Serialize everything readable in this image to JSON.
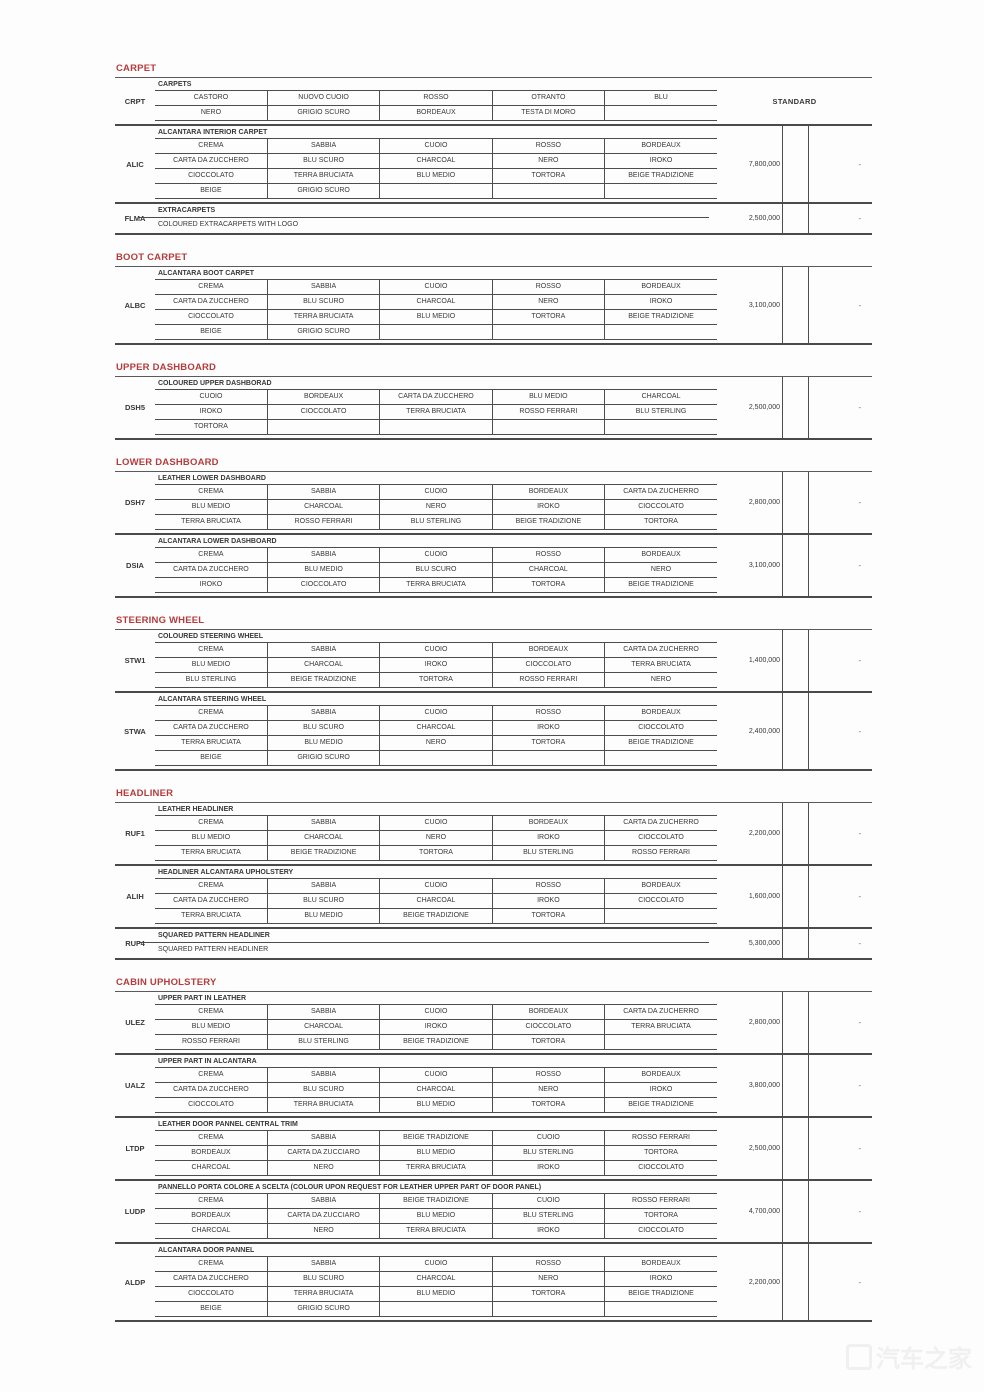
{
  "watermark": {
    "text": "汽车之家"
  },
  "sections": [
    {
      "title": "CARPET",
      "blocks": [
        {
          "code": "CRPT",
          "header": "CARPETS",
          "rows": [
            [
              "CASTORO",
              "NUOVO CUOIO",
              "ROSSO",
              "OTRANTO",
              "BLU"
            ],
            [
              "NERO",
              "GRIGIO SCURO",
              "BORDEAUX",
              "TESTA DI MORO",
              ""
            ]
          ],
          "standard": "STANDARD"
        },
        {
          "code": "ALIC",
          "header": "ALCANTARA INTERIOR CARPET",
          "rows": [
            [
              "CREMA",
              "SABBIA",
              "CUOIO",
              "ROSSO",
              "BORDEAUX"
            ],
            [
              "CARTA DA ZUCCHERO",
              "BLU SCURO",
              "CHARCOAL",
              "NERO",
              "IROKO"
            ],
            [
              "CIOCCOLATO",
              "TERRA BRUCIATA",
              "BLU MEDIO",
              "TORTORA",
              "BEIGE TRADIZIONE"
            ],
            [
              "BEIGE",
              "GRIGIO SCURO",
              "",
              "",
              ""
            ]
          ],
          "price": "7,800,000",
          "dash": "-"
        },
        {
          "code": "FLMA",
          "header": "EXTRACARPETS",
          "subtext": "COLOURED EXTRACARPETS WITH LOGO",
          "price": "2,500,000",
          "dash": "-"
        }
      ]
    },
    {
      "title": "BOOT CARPET",
      "blocks": [
        {
          "code": "ALBC",
          "header": "ALCANTARA BOOT CARPET",
          "rows": [
            [
              "CREMA",
              "SABBIA",
              "CUOIO",
              "ROSSO",
              "BORDEAUX"
            ],
            [
              "CARTA DA ZUCCHERO",
              "BLU SCURO",
              "CHARCOAL",
              "NERO",
              "IROKO"
            ],
            [
              "CIOCCOLATO",
              "TERRA BRUCIATA",
              "BLU MEDIO",
              "TORTORA",
              "BEIGE TRADIZIONE"
            ],
            [
              "BEIGE",
              "GRIGIO SCURO",
              "",
              "",
              ""
            ]
          ],
          "price": "3,100,000",
          "dash": "-"
        }
      ]
    },
    {
      "title": "UPPER DASHBOARD",
      "blocks": [
        {
          "code": "DSH5",
          "header": "COLOURED UPPER DASHBORAD",
          "rows": [
            [
              "CUOIO",
              "BORDEAUX",
              "CARTA DA ZUCCHERO",
              "BLU MEDIO",
              "CHARCOAL"
            ],
            [
              "IROKO",
              "CIOCCOLATO",
              "TERRA BRUCIATA",
              "ROSSO FERRARI",
              "BLU STERLING"
            ],
            [
              "TORTORA",
              "",
              "",
              "",
              ""
            ]
          ],
          "price": "2,500,000",
          "dash": "-"
        }
      ]
    },
    {
      "title": "LOWER DASHBOARD",
      "blocks": [
        {
          "code": "DSH7",
          "header": "LEATHER LOWER DASHBOARD",
          "rows": [
            [
              "CREMA",
              "SABBIA",
              "CUOIO",
              "BORDEAUX",
              "CARTA DA ZUCHERRO"
            ],
            [
              "BLU MEDIO",
              "CHARCOAL",
              "NERO",
              "IROKO",
              "CIOCCOLATO"
            ],
            [
              "TERRA BRUCIATA",
              "ROSSO FERRARI",
              "BLU STERLING",
              "BEIGE TRADIZIONE",
              "TORTORA"
            ]
          ],
          "price": "2,800,000",
          "dash": "-"
        },
        {
          "code": "DSIA",
          "header": "ALCANTARA LOWER DASHBOARD",
          "rows": [
            [
              "CREMA",
              "SABBIA",
              "CUOIO",
              "ROSSO",
              "BORDEAUX"
            ],
            [
              "CARTA DA ZUCCHERO",
              "BLU MEDIO",
              "BLU SCURO",
              "CHARCOAL",
              "NERO"
            ],
            [
              "IROKO",
              "CIOCCOLATO",
              "TERRA BRUCIATA",
              "TORTORA",
              "BEIGE TRADIZIONE"
            ]
          ],
          "price": "3,100,000",
          "dash": "-"
        }
      ]
    },
    {
      "title": "STEERING WHEEL",
      "blocks": [
        {
          "code": "STW1",
          "header": "COLOURED STEERING WHEEL",
          "rows": [
            [
              "CREMA",
              "SABBIA",
              "CUOIO",
              "BORDEAUX",
              "CARTA DA ZUCHERRO"
            ],
            [
              "BLU MEDIO",
              "CHARCOAL",
              "IROKO",
              "CIOCCOLATO",
              "TERRA BRUCIATA"
            ],
            [
              "BLU STERLING",
              "BEIGE TRADIZIONE",
              "TORTORA",
              "ROSSO FERRARI",
              "NERO"
            ]
          ],
          "price": "1,400,000",
          "dash": "-"
        },
        {
          "code": "STWA",
          "header": "ALCANTARA STEERING WHEEL",
          "rows": [
            [
              "CREMA",
              "SABBIA",
              "CUOIO",
              "ROSSO",
              "BORDEAUX"
            ],
            [
              "CARTA DA ZUCCHERO",
              "BLU SCURO",
              "CHARCOAL",
              "IROKO",
              "CIOCCOLATO"
            ],
            [
              "TERRA BRUCIATA",
              "BLU MEDIO",
              "NERO",
              "TORTORA",
              "BEIGE TRADIZIONE"
            ],
            [
              "BEIGE",
              "GRIGIO SCURO",
              "",
              "",
              ""
            ]
          ],
          "price": "2,400,000",
          "dash": "-"
        }
      ]
    },
    {
      "title": "HEADLINER",
      "blocks": [
        {
          "code": "RUF1",
          "header": "LEATHER HEADLINER",
          "rows": [
            [
              "CREMA",
              "SABBIA",
              "CUOIO",
              "BORDEAUX",
              "CARTA DA ZUCHERRO"
            ],
            [
              "BLU MEDIO",
              "CHARCOAL",
              "NERO",
              "IROKO",
              "CIOCCOLATO"
            ],
            [
              "TERRA BRUCIATA",
              "BEIGE TRADIZIONE",
              "TORTORA",
              "BLU STERLING",
              "ROSSO FERRARI"
            ]
          ],
          "price": "2,200,000",
          "dash": "-"
        },
        {
          "code": "ALIH",
          "header": "HEADLINER ALCANTARA UPHOLSTERY",
          "rows": [
            [
              "CREMA",
              "SABBIA",
              "CUOIO",
              "ROSSO",
              "BORDEAUX"
            ],
            [
              "CARTA DA ZUCCHERO",
              "BLU SCURO",
              "CHARCOAL",
              "IROKO",
              "CIOCCOLATO"
            ],
            [
              "TERRA BRUCIATA",
              "BLU MEDIO",
              "BEIGE TRADIZIONE",
              "TORTORA",
              ""
            ]
          ],
          "price": "1,600,000",
          "dash": "-"
        },
        {
          "code": "RUF4",
          "header": "SQUARED PATTERN HEADLINER",
          "subtext": "SQUARED PATTERN HEADLINER",
          "price": "5,300,000",
          "dash": "-"
        }
      ]
    },
    {
      "title": "CABIN UPHOLSTERY",
      "blocks": [
        {
          "code": "ULEZ",
          "header": "UPPER PART IN LEATHER",
          "rows": [
            [
              "CREMA",
              "SABBIA",
              "CUOIO",
              "BORDEAUX",
              "CARTA DA ZUCHERRO"
            ],
            [
              "BLU MEDIO",
              "CHARCOAL",
              "IROKO",
              "CIOCCOLATO",
              "TERRA BRUCIATA"
            ],
            [
              "ROSSO FERRARI",
              "BLU STERLING",
              "BEIGE TRADIZIONE",
              "TORTORA",
              ""
            ]
          ],
          "price": "2,800,000",
          "dash": "-"
        },
        {
          "code": "UALZ",
          "header": "UPPER PART IN ALCANTARA",
          "rows": [
            [
              "CREMA",
              "SABBIA",
              "CUOIO",
              "ROSSO",
              "BORDEAUX"
            ],
            [
              "CARTA DA ZUCCHERO",
              "BLU SCURO",
              "CHARCOAL",
              "NERO",
              "IROKO"
            ],
            [
              "CIOCCOLATO",
              "TERRA BRUCIATA",
              "BLU MEDIO",
              "TORTORA",
              "BEIGE TRADIZIONE"
            ]
          ],
          "price": "3,800,000",
          "dash": "-"
        },
        {
          "code": "LTDP",
          "header": "LEATHER DOOR PANNEL CENTRAL TRIM",
          "rows": [
            [
              "CREMA",
              "SABBIA",
              "BEIGE TRADIZIONE",
              "CUOIO",
              "ROSSO FERRARI"
            ],
            [
              "BORDEAUX",
              "CARTA DA ZUCCIARO",
              "BLU MEDIO",
              "BLU STERLING",
              "TORTORA"
            ],
            [
              "CHARCOAL",
              "NERO",
              "TERRA BRUCIATA",
              "IROKO",
              "CIOCCOLATO"
            ]
          ],
          "price": "2,500,000",
          "dash": "-"
        },
        {
          "code": "LUDP",
          "header": "PANNELLO PORTA COLORE A SCELTA (COLOUR UPON REQUEST FOR LEATHER UPPER PART OF DOOR PANEL)",
          "rows": [
            [
              "CREMA",
              "SABBIA",
              "BEIGE TRADIZIONE",
              "CUOIO",
              "ROSSO FERRARI"
            ],
            [
              "BORDEAUX",
              "CARTA DA ZUCCIARO",
              "BLU MEDIO",
              "BLU STERLING",
              "TORTORA"
            ],
            [
              "CHARCOAL",
              "NERO",
              "TERRA BRUCIATA",
              "IROKO",
              "CIOCCOLATO"
            ]
          ],
          "price": "4,700,000",
          "dash": "-"
        },
        {
          "code": "ALDP",
          "header": "ALCANTARA DOOR PANNEL",
          "rows": [
            [
              "CREMA",
              "SABBIA",
              "CUOIO",
              "ROSSO",
              "BORDEAUX"
            ],
            [
              "CARTA DA ZUCCHERO",
              "BLU SCURO",
              "CHARCOAL",
              "NERO",
              "IROKO"
            ],
            [
              "CIOCCOLATO",
              "TERRA BRUCIATA",
              "BLU MEDIO",
              "TORTORA",
              "BEIGE TRADIZIONE"
            ],
            [
              "BEIGE",
              "GRIGIO SCURO",
              "",
              "",
              ""
            ]
          ],
          "price": "2,200,000",
          "dash": "-"
        }
      ]
    }
  ]
}
